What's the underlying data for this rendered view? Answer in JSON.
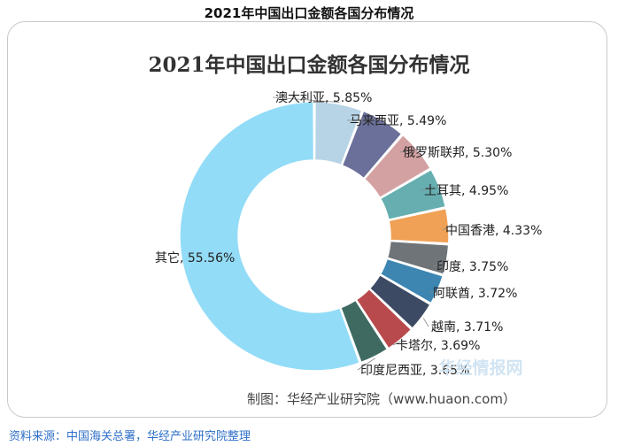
{
  "page": {
    "heading": "2021年中国出口金额各国分布情况",
    "source": "资料来源：中国海关总署，华经产业研究院整理"
  },
  "chart_data": {
    "type": "pie",
    "donut": true,
    "title": "2021年中国出口金额各国分布情况",
    "categories": [
      "澳大利亚",
      "马来西亚",
      "俄罗斯联邦",
      "土耳其",
      "中国香港",
      "印度",
      "阿联酋",
      "越南",
      "卡塔尔",
      "印度尼西亚",
      "其它"
    ],
    "values": [
      5.85,
      5.49,
      5.3,
      4.95,
      4.33,
      3.75,
      3.72,
      3.71,
      3.69,
      3.65,
      55.56
    ],
    "labels": [
      "澳大利亚, 5.85%",
      "马来西亚, 5.49%",
      "俄罗斯联邦, 5.30%",
      "土耳其, 4.95%",
      "中国香港, 4.33%",
      "印度, 3.75%",
      "阿联酋, 3.72%",
      "越南, 3.71%",
      "卡塔尔, 3.69%",
      "印度尼西亚, 3.65%",
      "其它, 55.56%"
    ],
    "colors": [
      "#b7d3e6",
      "#6a7099",
      "#d4a1a3",
      "#66aeb0",
      "#f0a155",
      "#6f7478",
      "#3d86b2",
      "#3d4a63",
      "#b84a4d",
      "#3e6a62",
      "#92dcf7"
    ],
    "credit": "制图：华经产业研究院（www.huaon.com）",
    "watermark": "华经情报网"
  }
}
